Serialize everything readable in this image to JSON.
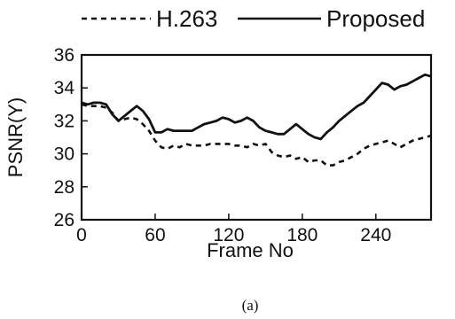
{
  "chart_data": {
    "type": "line",
    "xlabel": "Frame No",
    "ylabel": "PSNR(Y)",
    "caption": "(a)",
    "xlim": [
      0,
      285
    ],
    "ylim": [
      26,
      36
    ],
    "xticks": [
      0,
      60,
      120,
      180,
      240
    ],
    "yticks": [
      26,
      28,
      30,
      32,
      34,
      36
    ],
    "xtick_labels": [
      "0",
      "60",
      "120",
      "180",
      "240"
    ],
    "ytick_labels": [
      "26",
      "28",
      "30",
      "32",
      "34",
      "36"
    ],
    "legend_position": "top",
    "grid": false,
    "series": [
      {
        "name": "H.263",
        "style": "dashed",
        "color": "#111111",
        "x": [
          0,
          5,
          10,
          15,
          20,
          25,
          30,
          35,
          40,
          45,
          50,
          55,
          60,
          65,
          70,
          75,
          80,
          85,
          90,
          95,
          100,
          105,
          110,
          115,
          120,
          125,
          130,
          135,
          140,
          145,
          150,
          155,
          160,
          165,
          170,
          175,
          180,
          185,
          190,
          195,
          200,
          205,
          210,
          215,
          220,
          225,
          230,
          235,
          240,
          245,
          250,
          255,
          260,
          265,
          270,
          275,
          280,
          285
        ],
        "y": [
          33.0,
          32.9,
          32.9,
          32.9,
          32.8,
          32.5,
          32.0,
          32.1,
          32.2,
          32.1,
          31.8,
          31.4,
          30.8,
          30.4,
          30.3,
          30.5,
          30.4,
          30.6,
          30.5,
          30.5,
          30.5,
          30.6,
          30.6,
          30.6,
          30.6,
          30.5,
          30.5,
          30.4,
          30.6,
          30.5,
          30.6,
          30.1,
          29.9,
          29.8,
          29.9,
          29.7,
          29.8,
          29.5,
          29.6,
          29.6,
          29.3,
          29.3,
          29.5,
          29.6,
          29.8,
          30.0,
          30.3,
          30.5,
          30.6,
          30.7,
          30.8,
          30.6,
          30.4,
          30.6,
          30.8,
          30.9,
          31.0,
          31.1
        ]
      },
      {
        "name": "Proposed",
        "style": "solid",
        "color": "#111111",
        "x": [
          0,
          5,
          10,
          15,
          20,
          25,
          30,
          35,
          40,
          45,
          50,
          55,
          60,
          65,
          70,
          75,
          80,
          85,
          90,
          95,
          100,
          105,
          110,
          115,
          120,
          125,
          130,
          135,
          140,
          145,
          150,
          155,
          160,
          165,
          170,
          175,
          180,
          185,
          190,
          195,
          200,
          205,
          210,
          215,
          220,
          225,
          230,
          235,
          240,
          245,
          250,
          255,
          260,
          265,
          270,
          275,
          280,
          285
        ],
        "y": [
          33.1,
          33.0,
          33.1,
          33.1,
          33.0,
          32.4,
          32.0,
          32.3,
          32.6,
          32.9,
          32.6,
          32.1,
          31.3,
          31.3,
          31.5,
          31.4,
          31.4,
          31.4,
          31.4,
          31.6,
          31.8,
          31.9,
          32.0,
          32.2,
          32.1,
          31.9,
          32.0,
          32.2,
          32.0,
          31.6,
          31.4,
          31.3,
          31.2,
          31.2,
          31.5,
          31.8,
          31.5,
          31.2,
          31.0,
          30.9,
          31.3,
          31.6,
          32.0,
          32.3,
          32.6,
          32.9,
          33.1,
          33.5,
          33.9,
          34.3,
          34.2,
          33.9,
          34.1,
          34.2,
          34.4,
          34.6,
          34.8,
          34.7
        ]
      }
    ]
  }
}
